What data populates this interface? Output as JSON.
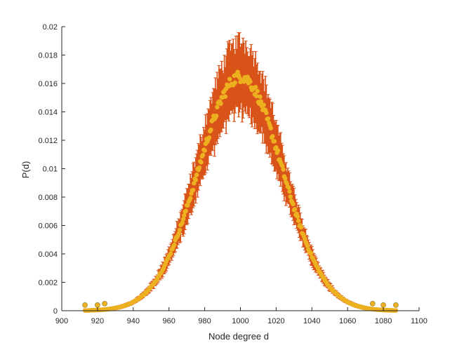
{
  "chart_data": {
    "type": "scatter",
    "title": "",
    "xlabel": "Node degree d",
    "ylabel": "P(d)",
    "xlim": [
      900,
      1100
    ],
    "ylim": [
      0,
      0.02
    ],
    "xticks": [
      "900",
      "920",
      "940",
      "960",
      "980",
      "1000",
      "1020",
      "1040",
      "1060",
      "1080",
      "1100"
    ],
    "yticks": [
      "0",
      "0.002",
      "0.004",
      "0.006",
      "0.008",
      "0.01",
      "0.012",
      "0.014",
      "0.016",
      "0.018",
      "0.02"
    ],
    "grid": false,
    "legend": "none",
    "series": [
      {
        "kind": "errorbar",
        "color": "#D95319",
        "x_range": [
          913,
          1087
        ],
        "mean": 1000,
        "std": 23.4,
        "peak": 0.0165,
        "error_half_width_fraction": 0.15
      },
      {
        "kind": "markers",
        "color": "#EDB120",
        "edge_color": "#9E8A3C",
        "x_range": [
          913,
          1087
        ],
        "mean": 1000,
        "std": 23.4,
        "peak": 0.0165
      }
    ],
    "outlier_points": [
      {
        "x": 913,
        "y": 0.0004
      },
      {
        "x": 920,
        "y": 0.0004
      },
      {
        "x": 924,
        "y": 0.0005
      },
      {
        "x": 1074,
        "y": 0.0005
      },
      {
        "x": 1080,
        "y": 0.0004
      },
      {
        "x": 1087,
        "y": 0.0004
      }
    ]
  }
}
